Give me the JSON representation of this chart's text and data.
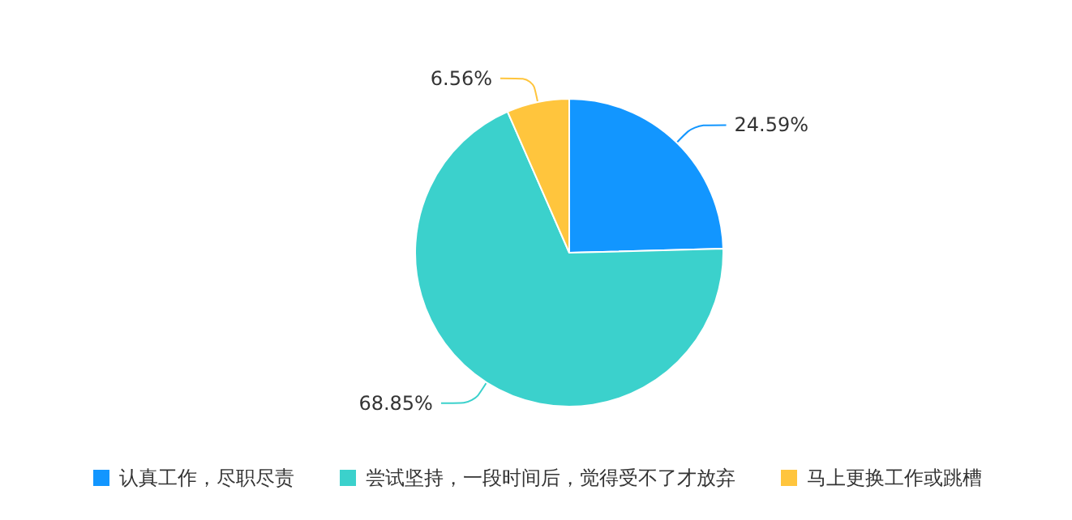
{
  "chart_data": {
    "type": "pie",
    "categories": [
      "认真工作，尽职尽责",
      "尝试坚持，一段时间后，觉得受不了才放弃",
      "马上更换工作或跳槽"
    ],
    "values": [
      24.59,
      68.85,
      6.56
    ],
    "colors": [
      "#1296ff",
      "#3bd1cc",
      "#ffc53d"
    ],
    "value_labels": [
      "24.59%",
      "68.85%",
      "6.56%"
    ],
    "legend": "bottom"
  }
}
